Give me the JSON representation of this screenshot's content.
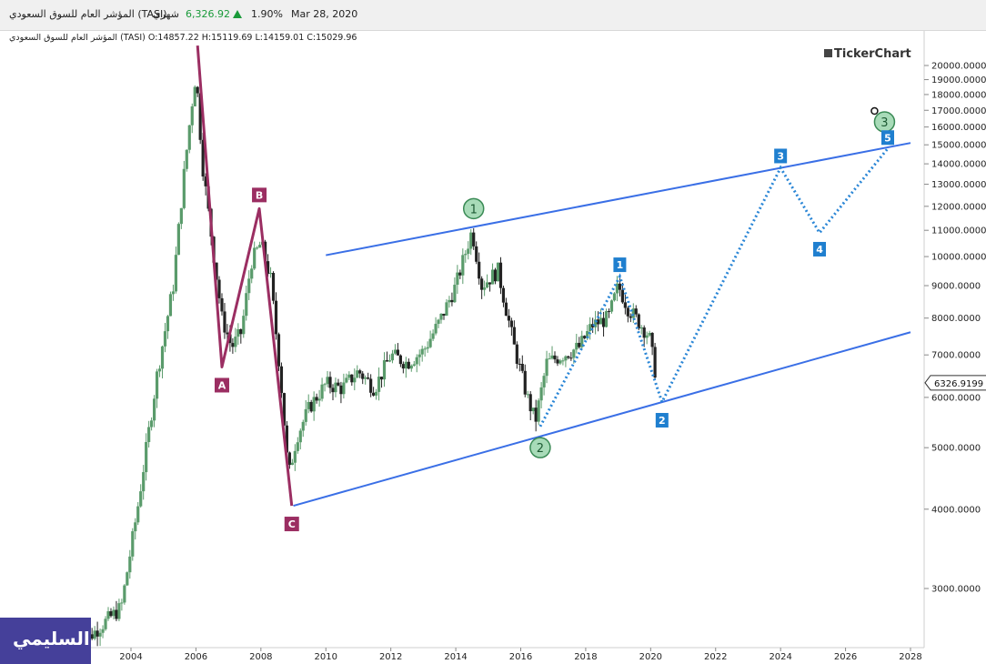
{
  "header": {
    "symbol": "المؤشر العام للسوق السعودي (TASI)",
    "period": "شهري",
    "last_value": "6,326.92",
    "change_pct": "1.90%",
    "date": "Mar 28, 2020"
  },
  "ohlc_line": "المؤشر العام للسوق السعودي (TASI)  O:14857.22  H:15119.69  L:14159.01  C:15029.96",
  "brand": "TickerChart",
  "author": "السليمي",
  "colors": {
    "up_candle": "#5a9b6b",
    "down_candle": "#222222",
    "channel": "#3a6fe6",
    "abc": "#9b2e62",
    "wave_label": "#1f7fcf",
    "circle_fill": "#a8dbb8"
  },
  "chart_data": {
    "type": "candlestick",
    "y_scale": "log",
    "ylim": [
      2400,
      21500
    ],
    "xlim": [
      2002.0,
      2028.5
    ],
    "y_tick_labels": [
      "20000.0000",
      "19000.0000",
      "18000.0000",
      "17000.0000",
      "16000.0000",
      "15000.0000",
      "14000.0000",
      "13000.0000",
      "12000.0000",
      "11000.0000",
      "10000.0000",
      "9000.0000",
      "8000.0000",
      "7000.0000",
      "6000.0000",
      "5000.0000",
      "4000.0000",
      "3000.0000"
    ],
    "x_tick_labels": [
      "2004",
      "2006",
      "2008",
      "2010",
      "2012",
      "2014",
      "2016",
      "2018",
      "2020",
      "2022",
      "2024",
      "2026",
      "2028"
    ],
    "last_price_label": "6326.9199",
    "last_price": 6326.92,
    "price_path": [
      [
        2002.3,
        2400
      ],
      [
        2003.0,
        2600
      ],
      [
        2003.7,
        2800
      ],
      [
        2004.2,
        4000
      ],
      [
        2004.8,
        6500
      ],
      [
        2005.3,
        9000
      ],
      [
        2005.6,
        13000
      ],
      [
        2005.85,
        17000
      ],
      [
        2006.0,
        19500
      ],
      [
        2006.2,
        14000
      ],
      [
        2006.5,
        10500
      ],
      [
        2006.8,
        8000
      ],
      [
        2007.1,
        7200
      ],
      [
        2007.4,
        7600
      ],
      [
        2007.7,
        9800
      ],
      [
        2008.0,
        10500
      ],
      [
        2008.3,
        9200
      ],
      [
        2008.6,
        6500
      ],
      [
        2008.85,
        4500
      ],
      [
        2009.1,
        5200
      ],
      [
        2009.5,
        5800
      ],
      [
        2010.0,
        6300
      ],
      [
        2010.5,
        6200
      ],
      [
        2011.0,
        6600
      ],
      [
        2011.5,
        6200
      ],
      [
        2012.0,
        7000
      ],
      [
        2012.5,
        6800
      ],
      [
        2013.0,
        7100
      ],
      [
        2013.5,
        7900
      ],
      [
        2014.0,
        9000
      ],
      [
        2014.5,
        11000
      ],
      [
        2014.8,
        9000
      ],
      [
        2015.3,
        9500
      ],
      [
        2015.8,
        7200
      ],
      [
        2016.2,
        6000
      ],
      [
        2016.45,
        5500
      ],
      [
        2016.8,
        6800
      ],
      [
        2017.3,
        7000
      ],
      [
        2017.8,
        7200
      ],
      [
        2018.2,
        7800
      ],
      [
        2018.7,
        8000
      ],
      [
        2019.0,
        9000
      ],
      [
        2019.3,
        8300
      ],
      [
        2019.7,
        7800
      ],
      [
        2019.95,
        7500
      ],
      [
        2020.2,
        6327
      ]
    ],
    "annotations": {
      "abc": [
        {
          "label": "A",
          "x": 2006.8,
          "y": 6700
        },
        {
          "label": "B",
          "x": 2007.95,
          "y": 11900
        },
        {
          "label": "C",
          "x": 2008.95,
          "y": 4050
        }
      ],
      "abc_start": {
        "x": 2006.05,
        "y": 21500
      },
      "circled_waves": [
        {
          "label": "1",
          "x": 2014.55,
          "y": 11900
        },
        {
          "label": "2",
          "x": 2016.6,
          "y": 5000
        },
        {
          "label": "3",
          "x": 2027.2,
          "y": 16300
        }
      ],
      "projected_waves": [
        {
          "label": "1",
          "x": 2019.05,
          "y": 9300
        },
        {
          "label": "2",
          "x": 2020.35,
          "y": 5900
        },
        {
          "label": "3",
          "x": 2024.0,
          "y": 13800
        },
        {
          "label": "4",
          "x": 2025.2,
          "y": 10900
        },
        {
          "label": "5",
          "x": 2027.3,
          "y": 14800
        }
      ],
      "channel_upper": [
        [
          2010.0,
          10050
        ],
        [
          2028.0,
          15100
        ]
      ],
      "channel_lower": [
        [
          2009.0,
          4050
        ],
        [
          2028.0,
          7600
        ]
      ]
    }
  }
}
